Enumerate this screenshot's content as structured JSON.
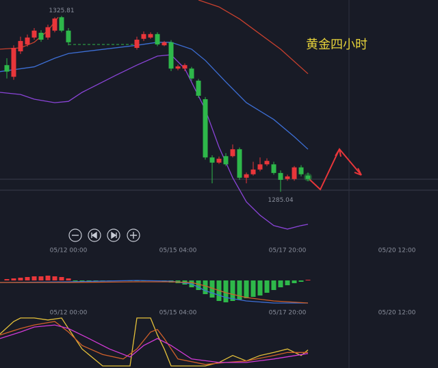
{
  "chart_data": [
    {
      "type": "candlestick",
      "title": "黄金四小时",
      "x": [
        1,
        2,
        3,
        4,
        5,
        6,
        7,
        8,
        9,
        10,
        20,
        21,
        22,
        23,
        24,
        25,
        26,
        27,
        28,
        29,
        30,
        31,
        32,
        33,
        34,
        35,
        36,
        37,
        38,
        39,
        40,
        41,
        42,
        43,
        44,
        45
      ],
      "open": [
        1314.4,
        1311.7,
        1317.6,
        1319.2,
        1320.8,
        1321.9,
        1320.8,
        1322.4,
        1325.5,
        1322.4,
        1318.4,
        1320.5,
        1320.8,
        1321.6,
        1319.0,
        1319.7,
        1313.6,
        1313.6,
        1313.6,
        1310.8,
        1306.5,
        1293.0,
        1291.8,
        1293.3,
        1293.3,
        1294.9,
        1288.3,
        1289.1,
        1290.2,
        1291.4,
        1291.4,
        1289.4,
        1288.0,
        1288.0,
        1290.7,
        1288.8
      ],
      "close": [
        1312.9,
        1318.4,
        1320.0,
        1320.8,
        1322.4,
        1320.3,
        1323.2,
        1325.2,
        1322.4,
        1319.7,
        1320.3,
        1321.6,
        1321.6,
        1319.2,
        1319.7,
        1313.6,
        1314.1,
        1314.4,
        1311.3,
        1307.3,
        1293.0,
        1291.8,
        1292.7,
        1291.4,
        1294.9,
        1288.3,
        1289.1,
        1290.2,
        1291.4,
        1292.2,
        1289.4,
        1287.8,
        1288.6,
        1290.7,
        1289.1,
        1288.0
      ],
      "high": [
        1316.0,
        1319.0,
        1321.0,
        1321.5,
        1323.0,
        1322.5,
        1323.8,
        1325.5,
        1325.81,
        1323.0,
        1321.0,
        1322.2,
        1322.0,
        1322.0,
        1320.0,
        1320.2,
        1314.5,
        1314.8,
        1314.0,
        1311.2,
        1307.0,
        1293.5,
        1293.2,
        1294.0,
        1296.0,
        1295.3,
        1289.5,
        1292.0,
        1293.0,
        1292.8,
        1292.0,
        1290.0,
        1289.0,
        1291.0,
        1291.2,
        1289.5
      ],
      "low": [
        1311.3,
        1311.0,
        1317.0,
        1318.7,
        1320.3,
        1319.8,
        1320.3,
        1322.0,
        1322.0,
        1319.0,
        1318.0,
        1320.0,
        1320.5,
        1318.8,
        1318.8,
        1313.0,
        1313.2,
        1313.0,
        1310.8,
        1306.8,
        1292.5,
        1287.0,
        1291.5,
        1291.0,
        1293.0,
        1287.8,
        1287.0,
        1288.8,
        1289.8,
        1291.0,
        1289.0,
        1285.04,
        1287.6,
        1287.6,
        1288.6,
        1287.5
      ],
      "up_color": "#e8363a",
      "down_color": "#2eb84a",
      "high_label": 1325.81,
      "low_label": 1285.04,
      "reference_line": {
        "x": [
          10,
          20
        ],
        "value": 1319.2,
        "color": "#2eb84a"
      },
      "lines": [
        {
          "color": "#c8402e",
          "x": [
            0,
            3,
            5,
            7,
            8.5,
            9,
            29,
            32,
            35,
            38,
            41,
            45
          ],
          "values": [
            1318.1,
            1318.4,
            1319.7,
            1322.4,
            1325.5,
            null,
            1329.5,
            1327.9,
            1325.1,
            1321.6,
            1318.1,
            1312.4
          ]
        },
        {
          "color": "#3d6fd6",
          "x": [
            0,
            5,
            8,
            10,
            20,
            23,
            25,
            28,
            30,
            33,
            36,
            40,
            43,
            45
          ],
          "values": [
            1312.9,
            1314.0,
            1316.0,
            1317.1,
            1319.0,
            1319.7,
            1319.7,
            1318.1,
            1315.5,
            1310.5,
            1305.7,
            1301.8,
            1297.8,
            1294.9
          ]
        },
        {
          "color": "#8a44d8",
          "x": [
            0,
            3,
            5,
            8,
            10,
            12,
            15,
            17,
            20,
            23,
            25,
            27,
            30,
            32,
            34,
            36,
            38,
            40,
            42,
            44,
            45
          ],
          "values": [
            1308.1,
            1307.6,
            1306.5,
            1305.7,
            1306.0,
            1308.1,
            1310.5,
            1312.1,
            1314.4,
            1316.5,
            1316.8,
            1313.6,
            1304.1,
            1295.4,
            1288.3,
            1282.7,
            1279.6,
            1277.2,
            1276.4,
            1277.2,
            1277.5
          ]
        }
      ],
      "xlim": [
        0,
        64
      ],
      "ylim": [
        1274,
        1329.5
      ],
      "xticks": [
        {
          "value": 10,
          "label": "05/12 00:00"
        },
        {
          "value": 26,
          "label": "05/15 04:00"
        },
        {
          "value": 42,
          "label": "05/17 20:00"
        },
        {
          "value": 58,
          "label": "05/20 12:00"
        }
      ]
    },
    {
      "type": "bar",
      "x": [
        1,
        2,
        3,
        4,
        5,
        6,
        7,
        8,
        9,
        10,
        11,
        12,
        13,
        14,
        15,
        16,
        17,
        18,
        19,
        20,
        21,
        22,
        23,
        24,
        25,
        26,
        27,
        28,
        29,
        30,
        31,
        32,
        33,
        34,
        35,
        36,
        37,
        38,
        39,
        40,
        41,
        42,
        43,
        44,
        45
      ],
      "values": [
        2,
        3,
        4,
        5,
        6,
        6,
        7,
        6,
        5,
        3,
        -1,
        -1,
        -1,
        -1,
        -1,
        -1,
        -1,
        -1,
        -1,
        -1,
        -1,
        -1,
        -1,
        -2,
        -3,
        -4,
        -6,
        -10,
        -14,
        -20,
        -25,
        -30,
        -32,
        -30,
        -28,
        -26,
        -24,
        -22,
        -18,
        -14,
        -10,
        -7,
        -4,
        -2,
        1
      ],
      "up_color": "#e8363a",
      "down_color": "#2eb84a",
      "lines": [
        {
          "color": "#3d6fd6",
          "x": [
            0,
            10,
            20,
            25,
            28,
            30,
            33,
            36,
            40,
            45
          ],
          "values": [
            -3,
            -2,
            0,
            -1,
            -5,
            -15,
            -25,
            -30,
            -33,
            -33
          ]
        },
        {
          "color": "#d0602a",
          "x": [
            0,
            10,
            20,
            25,
            28,
            30,
            33,
            36,
            40,
            45
          ],
          "values": [
            -3,
            -3,
            -2,
            -2,
            -3,
            -8,
            -18,
            -25,
            -30,
            -33
          ]
        }
      ],
      "xlim": [
        0,
        64
      ],
      "ylim": [
        -40,
        20
      ],
      "xticks": [
        {
          "value": 10,
          "label": "05/12 00:00"
        },
        {
          "value": 26,
          "label": "05/15 04:00"
        },
        {
          "value": 42,
          "label": "05/17 20:00"
        },
        {
          "value": 58,
          "label": "05/20 12:00"
        }
      ]
    },
    {
      "type": "line",
      "lines": [
        {
          "color": "#e6c23a",
          "x": [
            0,
            2,
            3,
            5,
            7,
            9,
            10,
            12,
            15,
            17,
            19,
            20,
            21,
            22,
            23,
            24,
            25,
            27,
            30,
            32,
            34,
            36,
            38,
            40,
            42,
            44,
            45
          ],
          "values": [
            64,
            89,
            96,
            96,
            92,
            96,
            75,
            34,
            0,
            0,
            0,
            96,
            96,
            96,
            62,
            34,
            0,
            0,
            0,
            7,
            21,
            10,
            21,
            27,
            34,
            21,
            32
          ]
        },
        {
          "color": "#d0602a",
          "x": [
            0,
            3,
            5,
            8,
            10,
            12,
            15,
            18,
            20,
            22,
            23,
            24,
            26,
            30,
            33,
            36,
            40,
            42,
            45
          ],
          "values": [
            62,
            75,
            82,
            89,
            68,
            41,
            23,
            14,
            34,
            68,
            73,
            55,
            14,
            3,
            7,
            10,
            21,
            27,
            27
          ]
        },
        {
          "color": "#d23ad6",
          "x": [
            0,
            3,
            5,
            8,
            10,
            13,
            16,
            19,
            21,
            23,
            25,
            28,
            32,
            36,
            40,
            45
          ],
          "values": [
            55,
            68,
            78,
            82,
            75,
            55,
            34,
            18,
            41,
            55,
            41,
            14,
            7,
            7,
            14,
            25
          ]
        }
      ],
      "xlim": [
        0,
        64
      ],
      "ylim": [
        0,
        100
      ]
    }
  ]
}
